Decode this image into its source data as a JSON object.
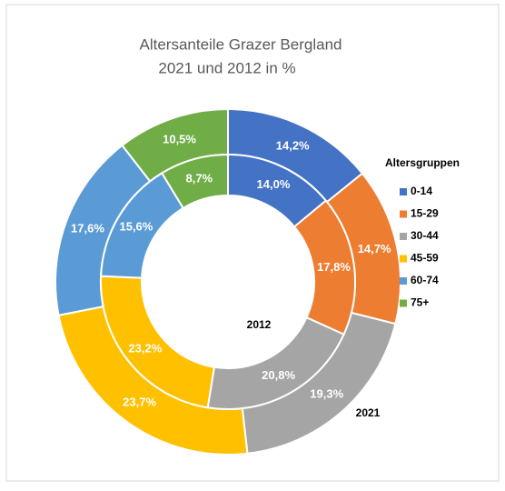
{
  "chart_data": {
    "type": "donut",
    "title": "Altersanteile  Grazer Bergland",
    "subtitle": "2021 und 2012 in %",
    "legend_title": "Altersgruppen",
    "categories": [
      "0-14",
      "15-29",
      "30-44",
      "45-59",
      "60-74",
      "75+"
    ],
    "colors": [
      "#4472c4",
      "#ed7d31",
      "#a5a5a5",
      "#ffc000",
      "#5b9bd5",
      "#70ad47"
    ],
    "series": [
      {
        "name": "2021",
        "values": [
          14.2,
          14.7,
          19.3,
          23.7,
          17.6,
          10.5
        ],
        "value_labels": [
          "14,2%",
          "14,7%",
          "19,3%",
          "23,7%",
          "17,6%",
          "10,5%"
        ]
      },
      {
        "name": "2012",
        "values": [
          14.0,
          17.8,
          20.8,
          23.2,
          15.6,
          8.7
        ],
        "value_labels": [
          "14,0%",
          "17,8%",
          "20,8%",
          "23,2%",
          "15,6%",
          "8,7%"
        ]
      }
    ],
    "legend": "right"
  }
}
